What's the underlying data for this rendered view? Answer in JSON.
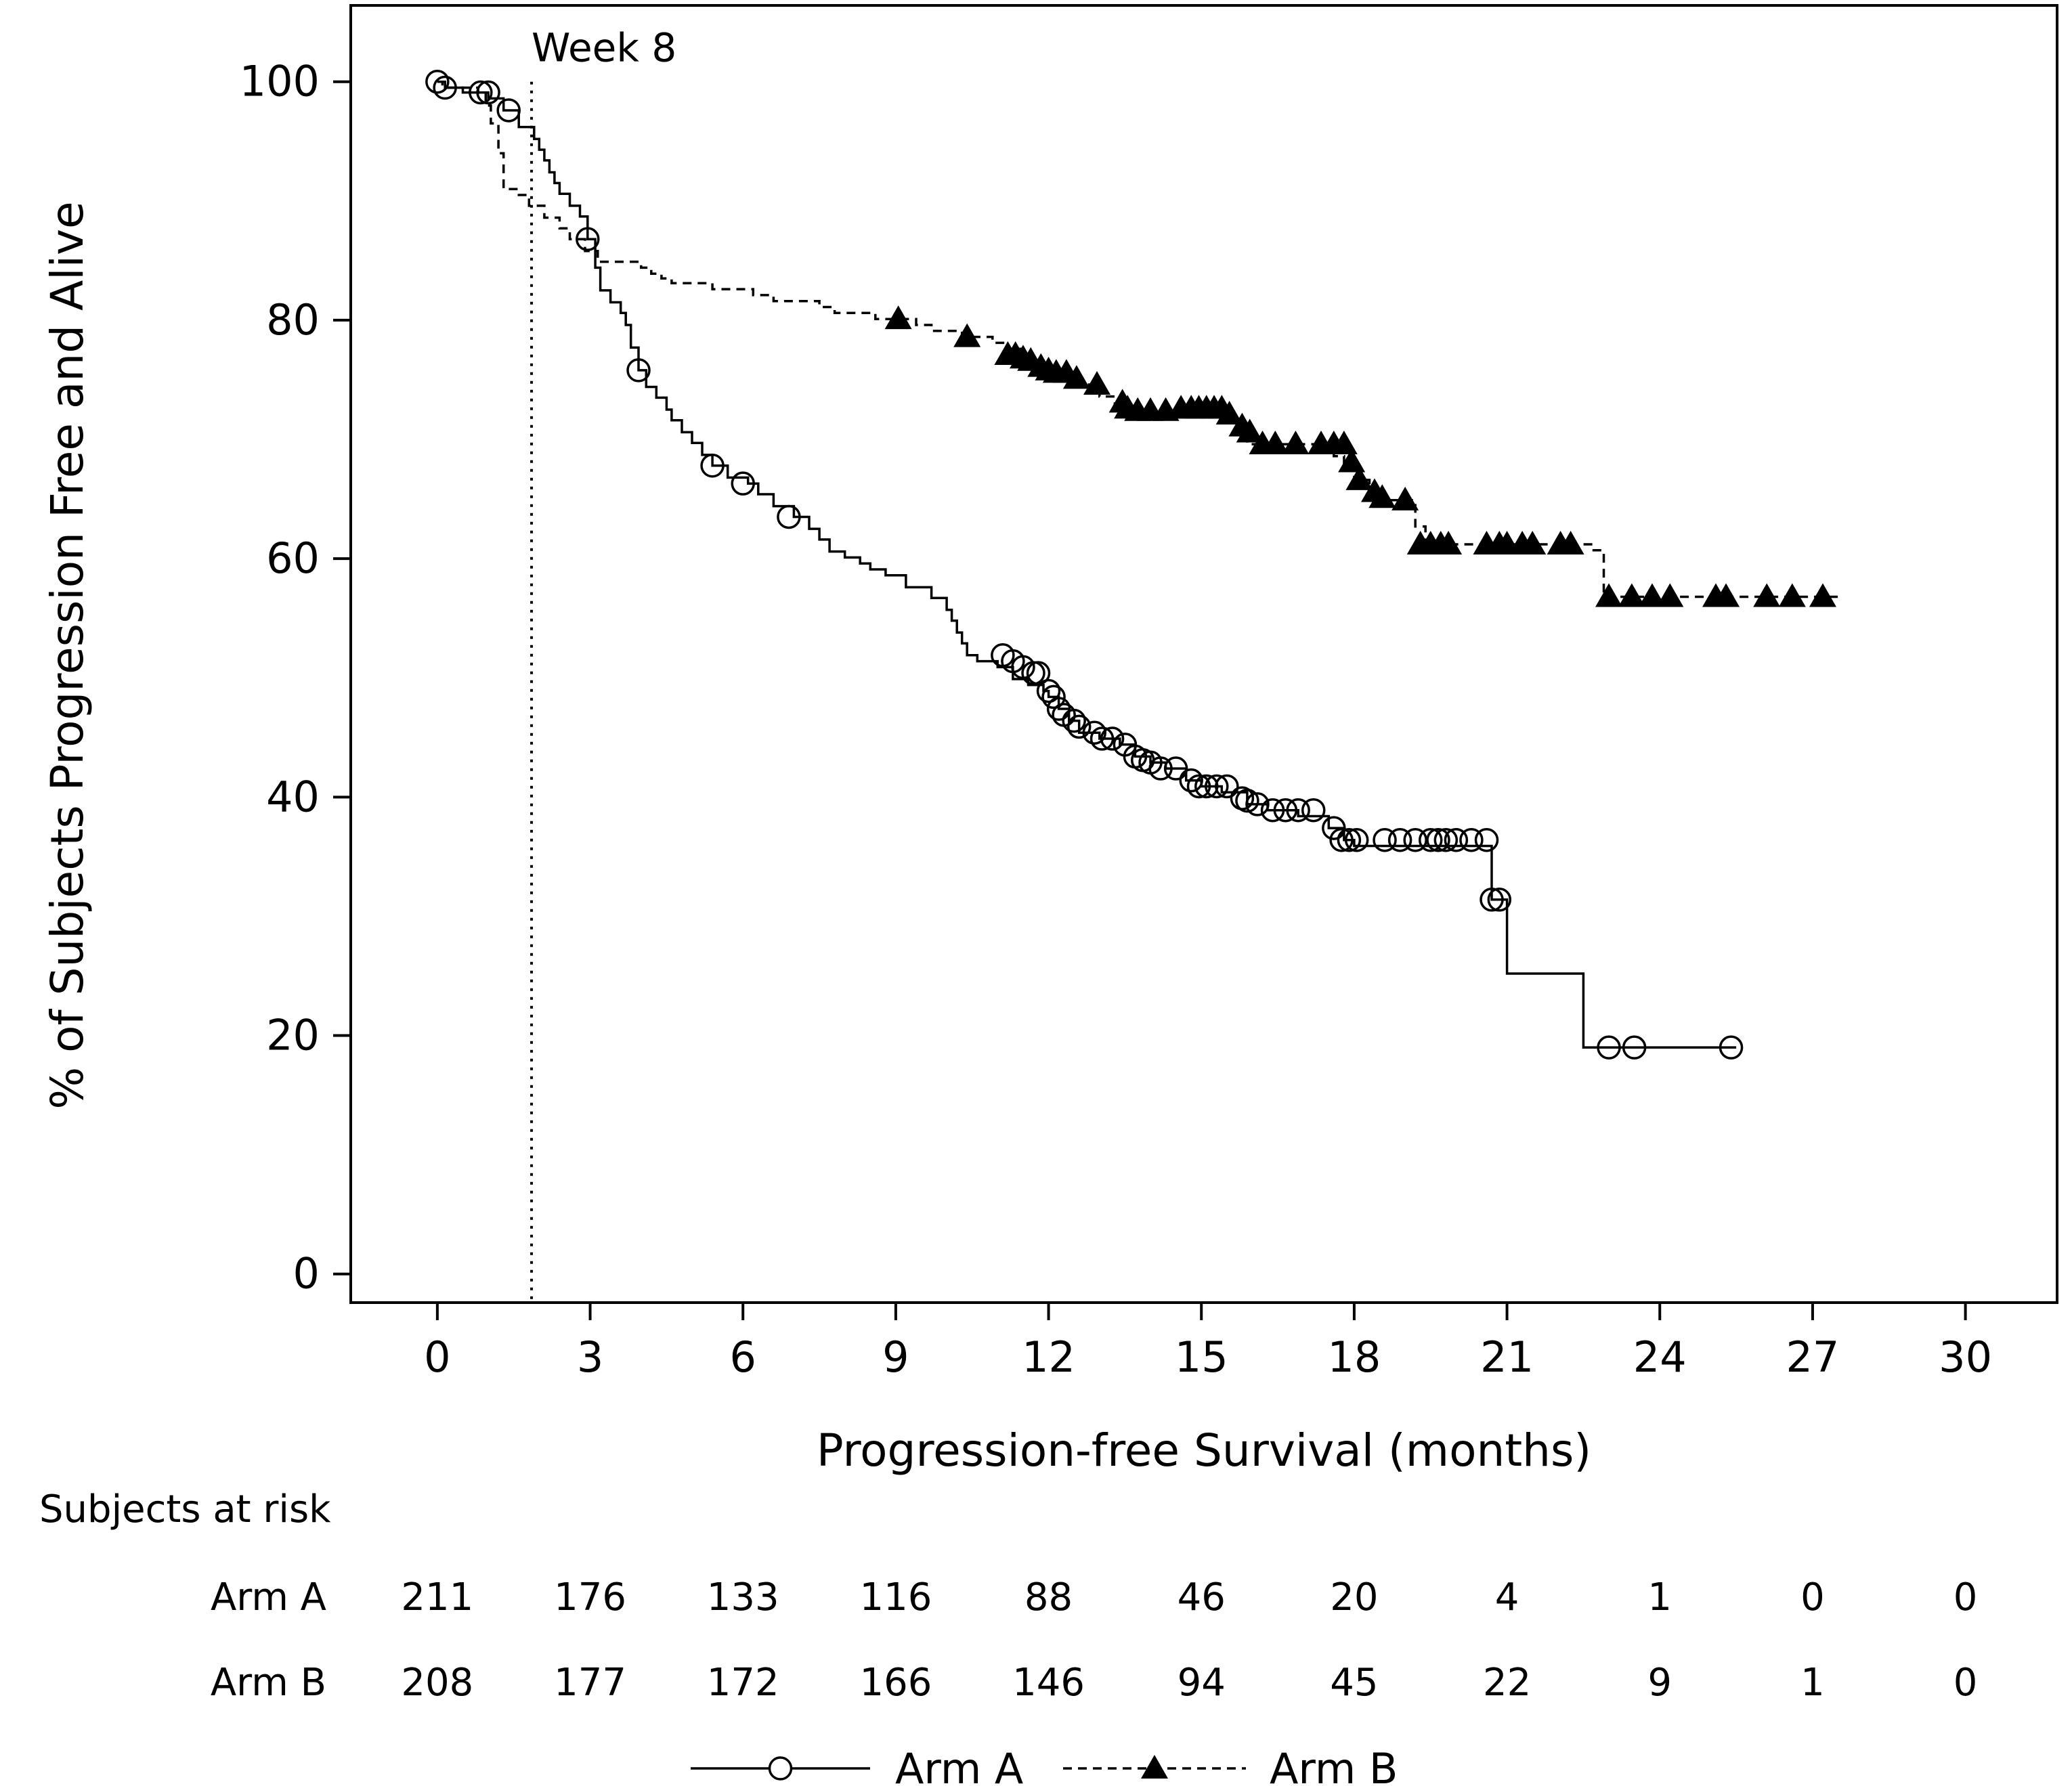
{
  "chart_data": {
    "type": "line",
    "subtype": "kaplan-meier",
    "title": "",
    "xlabel": "Progression-free Survival (months)",
    "ylabel": "% of Subjects Progression Free and Alive",
    "xlim": [
      -1.7,
      31.8
    ],
    "ylim": [
      -2.4,
      106.4
    ],
    "xticks": [
      0,
      3,
      6,
      9,
      12,
      15,
      18,
      21,
      24,
      27,
      30
    ],
    "yticks": [
      0,
      20,
      40,
      60,
      80,
      100
    ],
    "grid": false,
    "annotation": {
      "text": "Week 8",
      "x": 1.85
    },
    "series": [
      {
        "name": "Arm A",
        "line_style": "solid",
        "marker": "circle-open",
        "steps": [
          [
            0,
            100
          ],
          [
            0.15,
            99.5
          ],
          [
            0.5,
            99.1
          ],
          [
            1.0,
            98.6
          ],
          [
            1.3,
            97.6
          ],
          [
            1.6,
            96.2
          ],
          [
            1.9,
            95.2
          ],
          [
            2.0,
            94.3
          ],
          [
            2.1,
            93.4
          ],
          [
            2.2,
            92.4
          ],
          [
            2.3,
            91.5
          ],
          [
            2.4,
            90.6
          ],
          [
            2.6,
            89.6
          ],
          [
            2.8,
            88.7
          ],
          [
            2.95,
            86.8
          ],
          [
            3.1,
            84.4
          ],
          [
            3.2,
            82.5
          ],
          [
            3.4,
            81.5
          ],
          [
            3.6,
            80.6
          ],
          [
            3.7,
            79.6
          ],
          [
            3.8,
            77.7
          ],
          [
            3.95,
            75.8
          ],
          [
            4.1,
            74.4
          ],
          [
            4.3,
            73.5
          ],
          [
            4.5,
            72.5
          ],
          [
            4.6,
            71.6
          ],
          [
            4.8,
            70.6
          ],
          [
            5.0,
            69.7
          ],
          [
            5.2,
            68.7
          ],
          [
            5.4,
            67.8
          ],
          [
            5.7,
            66.8
          ],
          [
            6.1,
            66.3
          ],
          [
            6.3,
            65.4
          ],
          [
            6.6,
            64.4
          ],
          [
            7.0,
            63.5
          ],
          [
            7.3,
            62.5
          ],
          [
            7.5,
            61.6
          ],
          [
            7.7,
            60.6
          ],
          [
            8.0,
            60.1
          ],
          [
            8.3,
            59.6
          ],
          [
            8.5,
            59.1
          ],
          [
            8.8,
            58.6
          ],
          [
            9.2,
            57.6
          ],
          [
            9.7,
            56.7
          ],
          [
            10.0,
            55.7
          ],
          [
            10.1,
            54.8
          ],
          [
            10.2,
            53.8
          ],
          [
            10.3,
            52.9
          ],
          [
            10.4,
            51.9
          ],
          [
            10.6,
            51.4
          ],
          [
            11.0,
            50.9
          ],
          [
            11.3,
            49.9
          ],
          [
            11.6,
            49.4
          ],
          [
            11.9,
            48.9
          ],
          [
            12.0,
            48.4
          ],
          [
            12.2,
            47.4
          ],
          [
            12.4,
            46.4
          ],
          [
            12.6,
            45.4
          ],
          [
            13.0,
            44.9
          ],
          [
            13.4,
            44.4
          ],
          [
            13.7,
            43.4
          ],
          [
            14.0,
            42.9
          ],
          [
            14.3,
            42.4
          ],
          [
            14.7,
            41.4
          ],
          [
            15.0,
            40.9
          ],
          [
            15.4,
            40.4
          ],
          [
            15.9,
            39.4
          ],
          [
            16.3,
            38.9
          ],
          [
            16.9,
            38.4
          ],
          [
            17.5,
            37.4
          ],
          [
            17.8,
            36.4
          ],
          [
            18.0,
            35.9
          ],
          [
            20.7,
            31.4
          ],
          [
            21.0,
            25.2
          ],
          [
            22.5,
            19.0
          ],
          [
            25.5,
            19.0
          ]
        ],
        "censored": [
          [
            0,
            100
          ],
          [
            0.15,
            99.5
          ],
          [
            0.85,
            99.1
          ],
          [
            1.0,
            99.1
          ],
          [
            1.4,
            97.6
          ],
          [
            2.95,
            86.8
          ],
          [
            3.95,
            75.8
          ],
          [
            5.4,
            67.8
          ],
          [
            6.0,
            66.3
          ],
          [
            6.9,
            63.5
          ],
          [
            11.1,
            51.9
          ],
          [
            11.3,
            51.4
          ],
          [
            11.5,
            50.9
          ],
          [
            11.7,
            50.4
          ],
          [
            11.8,
            50.4
          ],
          [
            12.0,
            48.9
          ],
          [
            12.1,
            48.4
          ],
          [
            12.2,
            47.4
          ],
          [
            12.3,
            46.9
          ],
          [
            12.5,
            46.4
          ],
          [
            12.6,
            45.9
          ],
          [
            12.9,
            45.4
          ],
          [
            13.05,
            44.9
          ],
          [
            13.25,
            44.9
          ],
          [
            13.5,
            44.4
          ],
          [
            13.7,
            43.4
          ],
          [
            13.85,
            43.1
          ],
          [
            14.0,
            42.9
          ],
          [
            14.2,
            42.4
          ],
          [
            14.5,
            42.4
          ],
          [
            14.8,
            41.4
          ],
          [
            14.95,
            40.9
          ],
          [
            15.1,
            40.9
          ],
          [
            15.3,
            40.9
          ],
          [
            15.5,
            40.9
          ],
          [
            15.8,
            39.9
          ],
          [
            15.9,
            39.7
          ],
          [
            16.1,
            39.4
          ],
          [
            16.4,
            38.9
          ],
          [
            16.65,
            38.9
          ],
          [
            16.9,
            38.9
          ],
          [
            17.2,
            38.9
          ],
          [
            17.6,
            37.4
          ],
          [
            17.75,
            36.4
          ],
          [
            17.9,
            36.4
          ],
          [
            18.05,
            36.4
          ],
          [
            18.6,
            36.4
          ],
          [
            18.9,
            36.4
          ],
          [
            19.2,
            36.4
          ],
          [
            19.5,
            36.4
          ],
          [
            19.65,
            36.4
          ],
          [
            19.8,
            36.4
          ],
          [
            20.0,
            36.4
          ],
          [
            20.3,
            36.4
          ],
          [
            20.6,
            36.4
          ],
          [
            20.7,
            31.4
          ],
          [
            20.85,
            31.4
          ],
          [
            23.0,
            19.0
          ],
          [
            23.5,
            19.0
          ],
          [
            25.4,
            19.0
          ]
        ]
      },
      {
        "name": "Arm B",
        "line_style": "dashed",
        "marker": "triangle-filled",
        "steps": [
          [
            0,
            100
          ],
          [
            0.1,
            99.5
          ],
          [
            0.8,
            99.0
          ],
          [
            0.95,
            98.0
          ],
          [
            1.05,
            96.5
          ],
          [
            1.2,
            94.0
          ],
          [
            1.3,
            91.0
          ],
          [
            1.6,
            90.5
          ],
          [
            1.8,
            89.6
          ],
          [
            2.1,
            88.6
          ],
          [
            2.4,
            87.7
          ],
          [
            2.6,
            86.8
          ],
          [
            2.9,
            85.8
          ],
          [
            3.15,
            84.9
          ],
          [
            4.0,
            84.4
          ],
          [
            4.2,
            83.9
          ],
          [
            4.4,
            83.5
          ],
          [
            4.6,
            83.1
          ],
          [
            5.4,
            82.6
          ],
          [
            6.2,
            82.1
          ],
          [
            6.6,
            81.6
          ],
          [
            7.5,
            81.1
          ],
          [
            7.8,
            80.6
          ],
          [
            8.6,
            80.1
          ],
          [
            9.4,
            79.6
          ],
          [
            9.7,
            79.1
          ],
          [
            10.3,
            78.6
          ],
          [
            10.9,
            78.1
          ],
          [
            11.2,
            77.6
          ],
          [
            11.5,
            77.1
          ],
          [
            11.6,
            76.6
          ],
          [
            11.9,
            76.1
          ],
          [
            12.2,
            75.6
          ],
          [
            12.4,
            75.1
          ],
          [
            12.6,
            74.6
          ],
          [
            13.0,
            73.6
          ],
          [
            13.3,
            72.6
          ],
          [
            13.55,
            72.1
          ],
          [
            15.55,
            71.6
          ],
          [
            15.7,
            70.6
          ],
          [
            15.9,
            69.6
          ],
          [
            17.6,
            68.6
          ],
          [
            17.8,
            67.6
          ],
          [
            18.0,
            66.6
          ],
          [
            18.3,
            65.6
          ],
          [
            18.6,
            64.9
          ],
          [
            19.2,
            62.7
          ],
          [
            19.4,
            61.2
          ],
          [
            22.7,
            60.7
          ],
          [
            22.9,
            56.8
          ],
          [
            27.6,
            56.8
          ]
        ],
        "censored": [
          [
            9.05,
            80.1
          ],
          [
            10.4,
            78.6
          ],
          [
            11.2,
            77.1
          ],
          [
            11.35,
            77.1
          ],
          [
            11.5,
            76.8
          ],
          [
            11.65,
            76.6
          ],
          [
            11.85,
            76.1
          ],
          [
            12.0,
            75.8
          ],
          [
            12.15,
            75.6
          ],
          [
            12.35,
            75.6
          ],
          [
            12.55,
            75.1
          ],
          [
            12.95,
            74.6
          ],
          [
            13.45,
            73.1
          ],
          [
            13.55,
            72.6
          ],
          [
            13.75,
            72.4
          ],
          [
            14.0,
            72.4
          ],
          [
            14.3,
            72.4
          ],
          [
            14.6,
            72.6
          ],
          [
            14.8,
            72.6
          ],
          [
            14.95,
            72.6
          ],
          [
            15.1,
            72.6
          ],
          [
            15.25,
            72.6
          ],
          [
            15.4,
            72.6
          ],
          [
            15.55,
            72.1
          ],
          [
            15.8,
            71.1
          ],
          [
            15.95,
            70.6
          ],
          [
            16.2,
            69.6
          ],
          [
            16.45,
            69.6
          ],
          [
            16.85,
            69.6
          ],
          [
            17.35,
            69.6
          ],
          [
            17.6,
            69.6
          ],
          [
            17.8,
            69.6
          ],
          [
            17.95,
            68.1
          ],
          [
            18.1,
            66.6
          ],
          [
            18.4,
            65.6
          ],
          [
            18.55,
            65.1
          ],
          [
            19.0,
            64.9
          ],
          [
            19.3,
            61.2
          ],
          [
            19.5,
            61.2
          ],
          [
            19.7,
            61.2
          ],
          [
            19.85,
            61.2
          ],
          [
            20.6,
            61.2
          ],
          [
            20.85,
            61.2
          ],
          [
            21.0,
            61.2
          ],
          [
            21.3,
            61.2
          ],
          [
            21.5,
            61.2
          ],
          [
            22.05,
            61.2
          ],
          [
            22.25,
            61.2
          ],
          [
            23.0,
            56.8
          ],
          [
            23.45,
            56.8
          ],
          [
            23.85,
            56.8
          ],
          [
            24.2,
            56.8
          ],
          [
            25.1,
            56.8
          ],
          [
            25.3,
            56.8
          ],
          [
            26.1,
            56.8
          ],
          [
            26.6,
            56.8
          ],
          [
            27.2,
            56.8
          ]
        ]
      }
    ],
    "risk_table": {
      "heading": "Subjects at risk",
      "times": [
        0,
        3,
        6,
        9,
        12,
        15,
        18,
        21,
        24,
        27,
        30
      ],
      "rows": [
        {
          "label": "Arm A",
          "counts": [
            "211",
            "176",
            "133",
            "116",
            "88",
            "46",
            "20",
            "4",
            "1",
            "0",
            "0"
          ]
        },
        {
          "label": "Arm B",
          "counts": [
            "208",
            "177",
            "172",
            "166",
            "146",
            "94",
            "45",
            "22",
            "9",
            "1",
            "0"
          ]
        }
      ]
    },
    "legend": {
      "placement": "bottom-center",
      "entries": [
        {
          "label": "Arm A",
          "line_style": "solid",
          "marker": "circle-open"
        },
        {
          "label": "Arm B",
          "line_style": "dashed",
          "marker": "triangle-filled"
        }
      ]
    },
    "colors": {
      "line": "#000000",
      "background": "#ffffff"
    }
  }
}
